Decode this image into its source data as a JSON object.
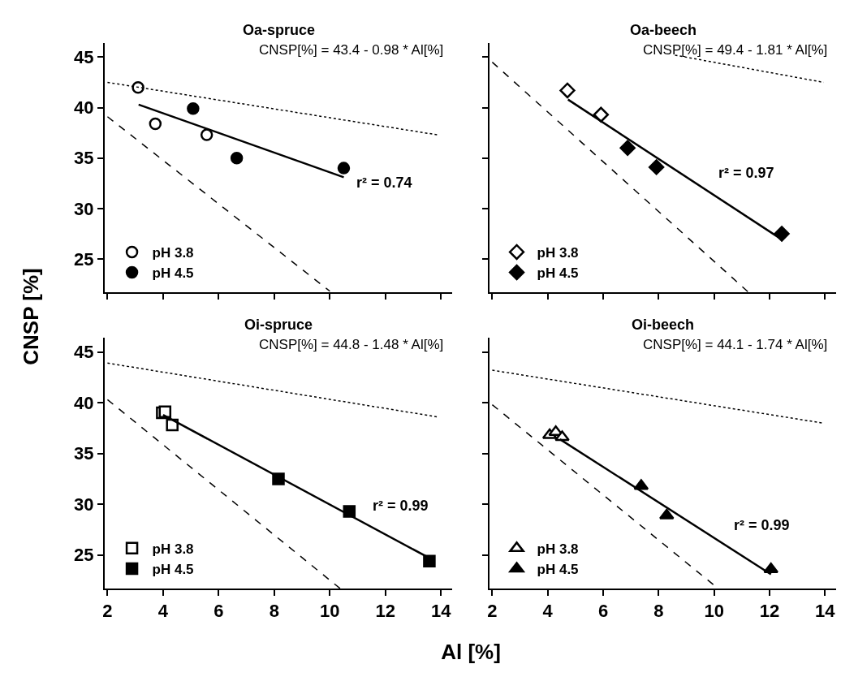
{
  "chart_data": [
    {
      "type": "scatter",
      "title": "Oa-spruce",
      "ylabel": "CNSP [%]",
      "legend": "bottom left",
      "tick_labels": "y",
      "xlim": [
        1.9,
        14.4
      ],
      "ylim": [
        21.7,
        46.4
      ],
      "xticks": [
        2,
        4,
        6,
        8,
        10,
        12,
        14
      ],
      "yticks": [
        25,
        30,
        35,
        40,
        45
      ],
      "annotations": [
        "CNSP[%] = 43.4 - 0.98 * Al[%]",
        "r² = 0.74"
      ],
      "series": [
        {
          "name": "pH 3.8",
          "type": "scatter",
          "marker": "circle",
          "color": "#ffffff",
          "x": [
            3.1,
            3.72,
            5.57
          ],
          "values": [
            42.0,
            38.4,
            37.3
          ]
        },
        {
          "name": "pH 4.5",
          "type": "scatter",
          "marker": "circle",
          "color": "#000000",
          "x": [
            5.08,
            6.65,
            10.5
          ],
          "values": [
            39.9,
            35.0,
            34.0
          ]
        },
        {
          "type": "line",
          "line_style": "solid",
          "color": "#000000",
          "x": [
            3.12,
            10.5
          ],
          "values": [
            40.3,
            33.1
          ]
        },
        {
          "type": "line",
          "line_style": "dotted",
          "color": "#000000",
          "x": [
            2,
            13.87
          ],
          "values": [
            42.5,
            37.3
          ]
        },
        {
          "type": "line",
          "line_style": "dashed",
          "color": "#000000",
          "x": [
            2,
            10.0
          ],
          "values": [
            39.1,
            21.8
          ]
        }
      ]
    },
    {
      "type": "scatter",
      "title": "Oa-beech",
      "legend": "bottom left",
      "tick_labels": false,
      "xlim": [
        1.9,
        14.4
      ],
      "ylim": [
        21.7,
        46.4
      ],
      "xticks": [
        2,
        4,
        6,
        8,
        10,
        12,
        14
      ],
      "yticks": [
        25,
        30,
        35,
        40,
        45
      ],
      "annotations": [
        "CNSP[%] = 49.4 - 1.81 * Al[%]",
        "r² = 0.97"
      ],
      "series": [
        {
          "name": "pH 3.8",
          "type": "scatter",
          "marker": "diamond",
          "color": "#ffffff",
          "x": [
            4.71,
            5.92
          ],
          "values": [
            41.7,
            39.3
          ]
        },
        {
          "name": "pH 4.5",
          "type": "scatter",
          "marker": "diamond",
          "color": "#000000",
          "x": [
            6.88,
            7.92,
            12.44
          ],
          "values": [
            36.0,
            34.1,
            27.5
          ]
        },
        {
          "type": "line",
          "line_style": "solid",
          "color": "#000000",
          "x": [
            4.73,
            12.4
          ],
          "values": [
            40.8,
            27.0
          ]
        },
        {
          "type": "line",
          "line_style": "dotted",
          "color": "#000000",
          "x": [
            8.59,
            13.95
          ],
          "values": [
            45.2,
            42.5
          ]
        },
        {
          "type": "line",
          "line_style": "dashed",
          "color": "#000000",
          "x": [
            2,
            11.24
          ],
          "values": [
            44.5,
            21.7
          ]
        }
      ]
    },
    {
      "type": "scatter",
      "title": "Oi-spruce",
      "xlabel": "Al [%]",
      "legend": "bottom left",
      "xlim": [
        1.9,
        14.4
      ],
      "ylim": [
        21.7,
        46.4
      ],
      "xticks": [
        2,
        4,
        6,
        8,
        10,
        12,
        14
      ],
      "yticks": [
        25,
        30,
        35,
        40,
        45
      ],
      "annotations": [
        "CNSP[%] = 44.8 - 1.48 * Al[%]",
        "r² = 0.99"
      ],
      "series": [
        {
          "name": "pH 3.8",
          "type": "scatter",
          "marker": "square",
          "color": "#ffffff",
          "x": [
            3.97,
            4.07,
            4.33
          ],
          "values": [
            39.0,
            39.1,
            37.8
          ]
        },
        {
          "name": "pH 4.5",
          "type": "scatter",
          "marker": "square",
          "color": "#000000",
          "x": [
            8.15,
            10.7,
            13.58
          ],
          "values": [
            32.5,
            29.3,
            24.4
          ]
        },
        {
          "type": "line",
          "line_style": "solid",
          "color": "#000000",
          "x": [
            4.0,
            13.58
          ],
          "values": [
            38.8,
            24.7
          ]
        },
        {
          "type": "line",
          "line_style": "dotted",
          "color": "#000000",
          "x": [
            2,
            13.87
          ],
          "values": [
            43.9,
            38.6
          ]
        },
        {
          "type": "line",
          "line_style": "dashed",
          "color": "#000000",
          "x": [
            2,
            10.37
          ],
          "values": [
            40.3,
            21.7
          ]
        }
      ]
    },
    {
      "type": "scatter",
      "title": "Oi-beech",
      "legend": "bottom left",
      "tick_labels": "x",
      "xlim": [
        1.9,
        14.4
      ],
      "ylim": [
        21.7,
        46.4
      ],
      "xticks": [
        2,
        4,
        6,
        8,
        10,
        12,
        14
      ],
      "yticks": [
        25,
        30,
        35,
        40,
        45
      ],
      "annotations": [
        "CNSP[%] = 44.1 - 1.74 * Al[%]",
        "r² = 0.99"
      ],
      "series": [
        {
          "name": "pH 3.8",
          "type": "scatter",
          "marker": "triangle",
          "color": "#ffffff",
          "x": [
            4.07,
            4.29,
            4.52
          ],
          "values": [
            36.8,
            37.1,
            36.6
          ]
        },
        {
          "name": "pH 4.5",
          "type": "scatter",
          "marker": "triangle",
          "color": "#000000",
          "x": [
            7.37,
            8.29,
            12.05
          ],
          "values": [
            31.8,
            28.9,
            23.6
          ]
        },
        {
          "type": "line",
          "line_style": "solid",
          "color": "#000000",
          "x": [
            4.44,
            12.05
          ],
          "values": [
            36.4,
            23.1
          ]
        },
        {
          "type": "line",
          "line_style": "dotted",
          "color": "#000000",
          "x": [
            2,
            13.9
          ],
          "values": [
            43.2,
            38.0
          ]
        },
        {
          "type": "line",
          "line_style": "dashed",
          "color": "#000000",
          "x": [
            2,
            10.1
          ],
          "values": [
            39.8,
            21.8
          ]
        }
      ]
    }
  ]
}
